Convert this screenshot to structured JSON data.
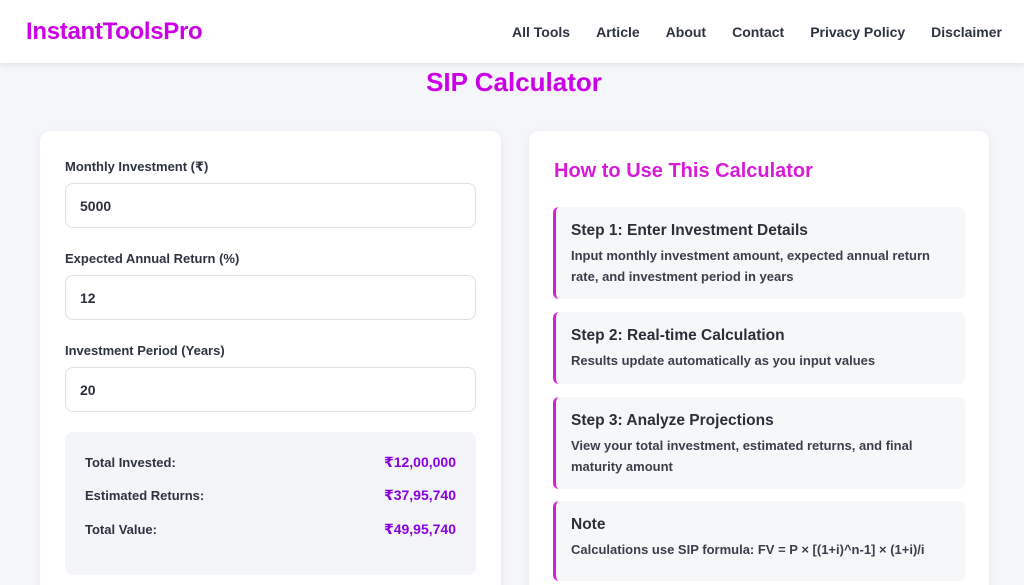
{
  "colors": {
    "brand": "#cc00e6",
    "accent": "#d81bd8",
    "value_purple": "#8a00e0",
    "step_border": "#d61ed6"
  },
  "header": {
    "logo": "InstantToolsPro",
    "nav": [
      "All Tools",
      "Article",
      "About",
      "Contact",
      "Privacy Policy",
      "Disclaimer"
    ]
  },
  "page": {
    "title": "SIP Calculator"
  },
  "calculator": {
    "monthly": {
      "label": "Monthly Investment (₹)",
      "value": "5000"
    },
    "rate": {
      "label": "Expected Annual Return (%)",
      "value": "12"
    },
    "period": {
      "label": "Investment Period (Years)",
      "value": "20"
    },
    "results": [
      {
        "label": "Total Invested:",
        "value": "₹12,00,000"
      },
      {
        "label": "Estimated Returns:",
        "value": "₹37,95,740"
      },
      {
        "label": "Total Value:",
        "value": "₹49,95,740"
      }
    ]
  },
  "howto": {
    "title": "How to Use This Calculator",
    "steps": [
      {
        "title": "Step 1: Enter Investment Details",
        "desc": "Input monthly investment amount, expected annual return rate, and investment period in years"
      },
      {
        "title": "Step 2: Real-time Calculation",
        "desc": "Results update automatically as you input values"
      },
      {
        "title": "Step 3: Analyze Projections",
        "desc": "View your total investment, estimated returns, and final maturity amount"
      },
      {
        "title": "Note",
        "desc": "Calculations use SIP formula: FV = P × [(1+i)^n-1] × (1+i)/i"
      }
    ]
  }
}
